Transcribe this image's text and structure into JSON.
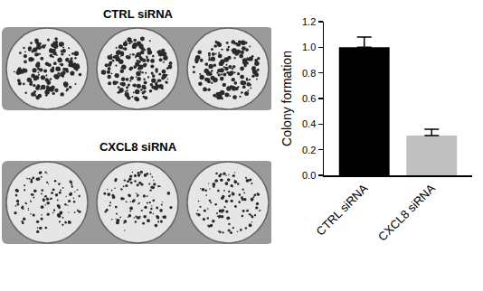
{
  "chart_data": {
    "type": "bar",
    "categories": [
      "CTRL siRNA",
      "CXCL8 siRNA"
    ],
    "values": [
      1.0,
      0.31
    ],
    "errors": [
      0.08,
      0.05
    ],
    "colors": [
      "#000000",
      "#c0c0c0"
    ],
    "y_label": "Colony formation",
    "ylim": [
      0,
      1.2
    ],
    "yticks": [
      {
        "value": 0,
        "label": "0.0"
      },
      0.2,
      0.4,
      0.6,
      0.8,
      {
        "value": 1,
        "label": "1.0"
      },
      {
        "value": 1.2,
        "label": "1.2"
      }
    ],
    "grid": false
  },
  "panels": [
    {
      "label": "CTRL siRNA"
    },
    {
      "label": "CXCL8 siRNA"
    }
  ]
}
